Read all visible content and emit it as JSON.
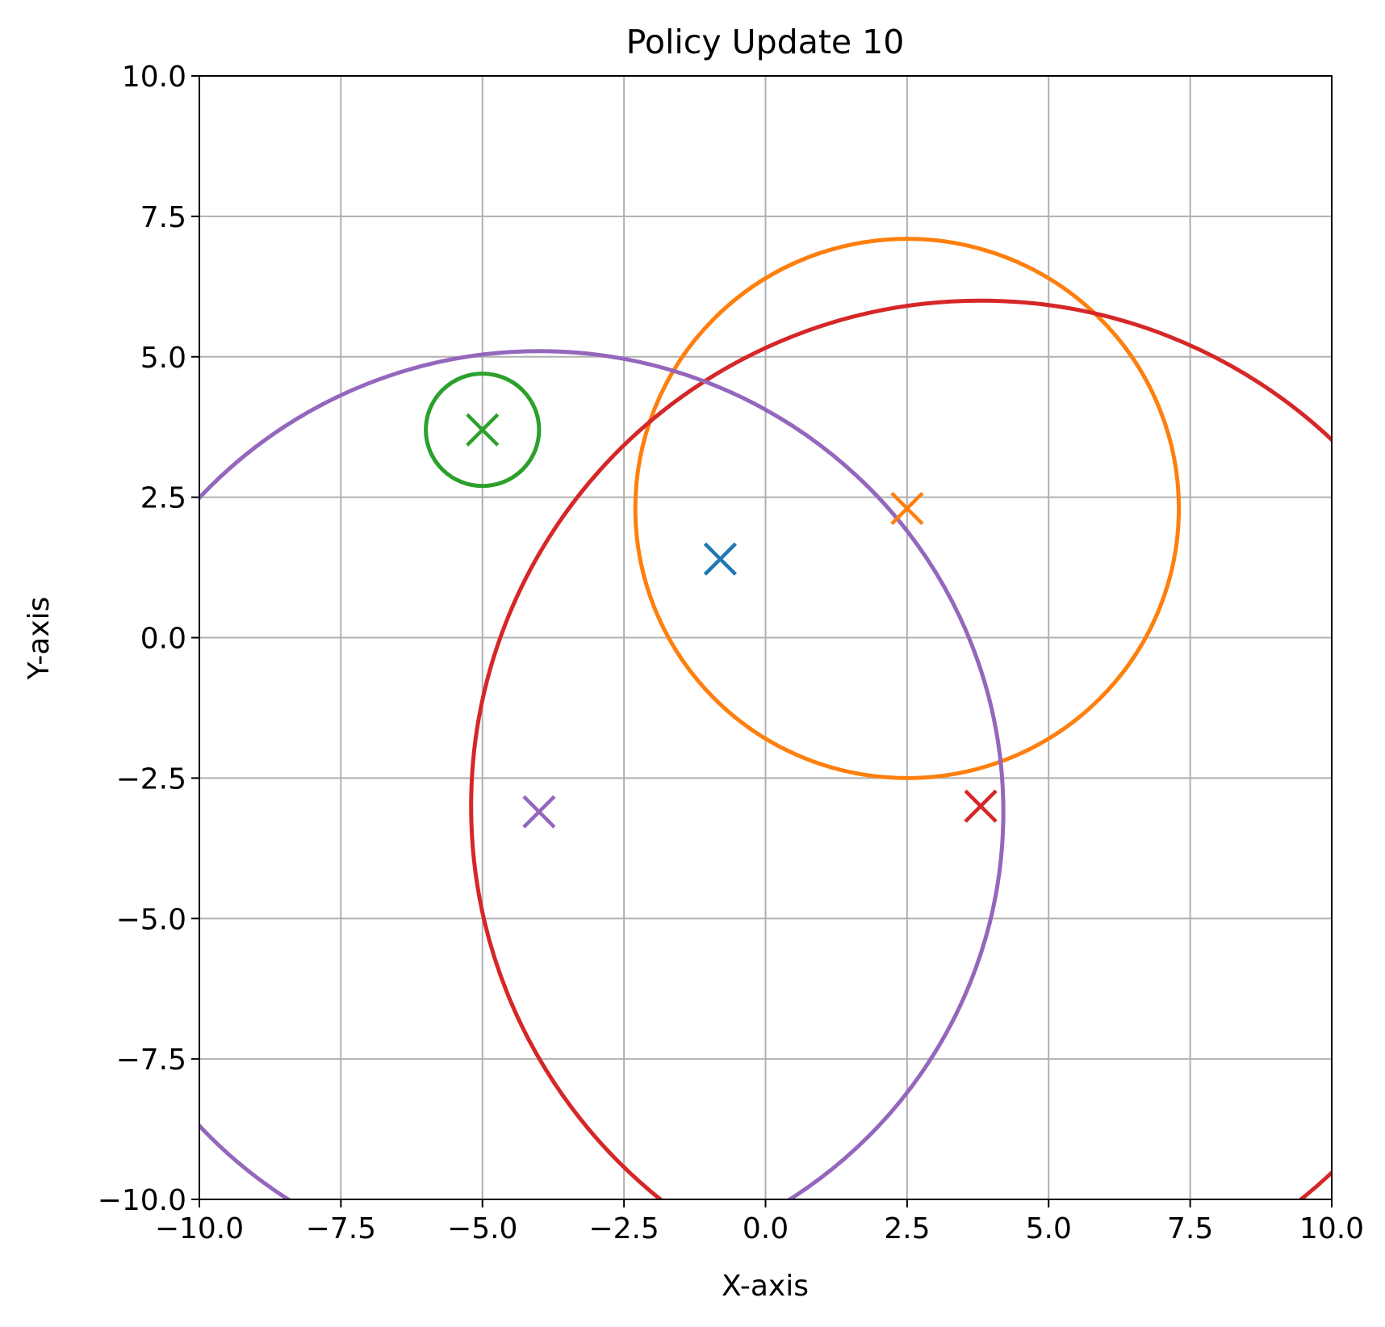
{
  "chart_data": {
    "type": "scatter",
    "title": "Policy Update 10",
    "xlabel": "X-axis",
    "ylabel": "Y-axis",
    "xlim": [
      -10,
      10
    ],
    "ylim": [
      -10,
      10
    ],
    "xticks": [
      "−10.0",
      "−7.5",
      "−5.0",
      "−2.5",
      "0.0",
      "2.5",
      "5.0",
      "7.5",
      "10.0"
    ],
    "yticks": [
      "−10.0",
      "−7.5",
      "−5.0",
      "−2.5",
      "0.0",
      "2.5",
      "5.0",
      "7.5",
      "10.0"
    ],
    "grid": true,
    "legend": "none",
    "points": [
      {
        "color": "#1f77b4",
        "x": -0.8,
        "y": 1.4,
        "circle_radius": null
      },
      {
        "color": "#ff7f0e",
        "x": 2.5,
        "y": 2.3,
        "circle_radius": 4.8
      },
      {
        "color": "#2ca02c",
        "x": -5.0,
        "y": 3.7,
        "circle_radius": 1.0
      },
      {
        "color": "#d62728",
        "x": 3.8,
        "y": -3.0,
        "circle_radius": 9.0
      },
      {
        "color": "#9467bd",
        "x": -4.0,
        "y": -3.1,
        "circle_radius": 8.2
      }
    ]
  }
}
